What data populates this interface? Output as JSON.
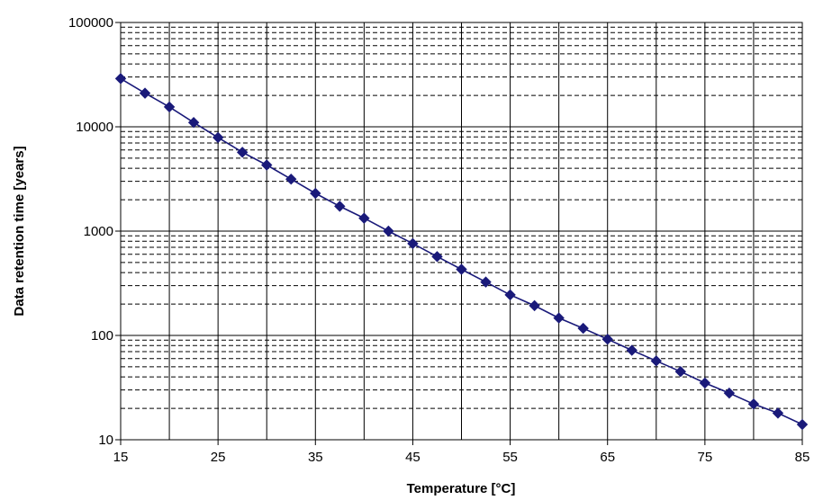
{
  "chart_data": {
    "type": "line",
    "title": "",
    "xlabel": "Temperature [°C]",
    "ylabel": "Data retention time [years]",
    "x_scale": "linear",
    "y_scale": "log",
    "xlim": [
      15,
      85
    ],
    "ylim": [
      10,
      100000
    ],
    "x_ticks": [
      "15",
      "25",
      "35",
      "45",
      "55",
      "65",
      "75",
      "85"
    ],
    "y_ticks": [
      "10",
      "100",
      "1000",
      "10000",
      "100000"
    ],
    "grid": "major solid, minor dashed on y",
    "series": [
      {
        "color": "#1a1a7a",
        "marker": "diamond",
        "x": [
          15,
          17.5,
          20,
          22.5,
          25,
          27.5,
          30,
          32.5,
          35,
          37.5,
          40,
          42.5,
          45,
          47.5,
          50,
          52.5,
          55,
          57.5,
          60,
          62.5,
          65,
          67.5,
          70,
          72.5,
          75,
          77.5,
          80,
          82.5,
          85
        ],
        "y": [
          29000,
          21000,
          15500,
          11000,
          7900,
          5700,
          4300,
          3150,
          2300,
          1730,
          1330,
          1000,
          760,
          570,
          430,
          325,
          245,
          193,
          147,
          117,
          92,
          72,
          57,
          45,
          35,
          28,
          22,
          18,
          14
        ]
      }
    ]
  }
}
